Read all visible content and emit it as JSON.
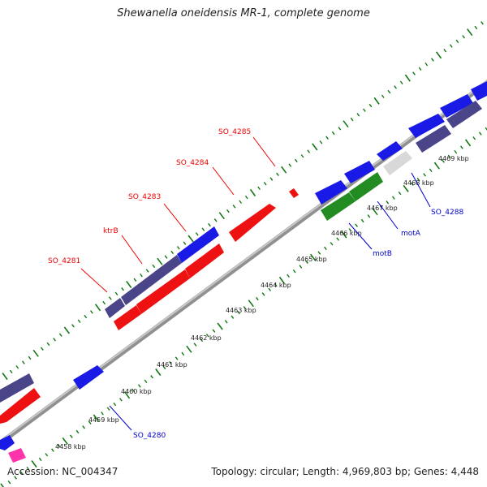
{
  "title": "Shewanella oneidensis MR-1, complete genome",
  "footer": {
    "accession": "Accession: NC_004347",
    "topology": "Topology: circular; Length: 4,969,803 bp; Genes: 4,448"
  },
  "scale_labels": [
    "4458 kbp",
    "4459 kbp",
    "4460 kbp",
    "4461 kbp",
    "4462 kbp",
    "4463 kbp",
    "4464 kbp",
    "4465 kbp",
    "4466 kbp",
    "4467 kbp",
    "4468 kbp",
    "4469 kbp"
  ],
  "gene_labels": [
    {
      "text": "SO_4281",
      "strand": "forward"
    },
    {
      "text": "ktrB",
      "strand": "forward"
    },
    {
      "text": "SO_4283",
      "strand": "forward"
    },
    {
      "text": "SO_4284",
      "strand": "forward"
    },
    {
      "text": "SO_4285",
      "strand": "forward"
    },
    {
      "text": "SO_4280",
      "strand": "reverse"
    },
    {
      "text": "motB",
      "strand": "reverse"
    },
    {
      "text": "motA",
      "strand": "reverse"
    },
    {
      "text": "SO_4288",
      "strand": "reverse"
    }
  ],
  "colors": {
    "labeled_forward": "#ee0000",
    "labeled_reverse": "#0000cc",
    "feature_blue": "#1a1ae6",
    "feature_dark": "#4a4488",
    "feature_red": "#ee1111",
    "feature_green": "#228b22",
    "feature_grey": "#d8d8d8",
    "feature_pink": "#ff33aa",
    "backbone": "#888888",
    "tick": "#117711"
  }
}
